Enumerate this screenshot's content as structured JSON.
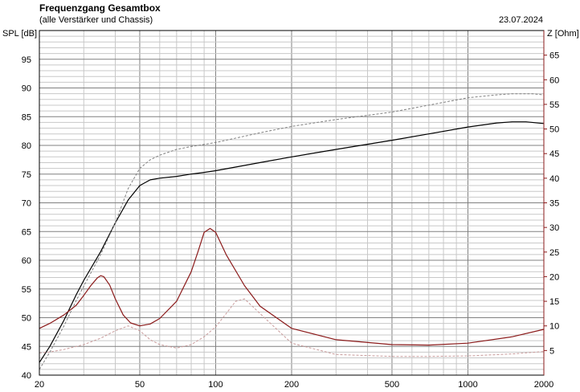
{
  "chart_data": {
    "type": "line",
    "title": "Frequenzgang Gesamtbox",
    "subtitle": "(alle Verstärker und Chassis)",
    "date": "23.07.2024",
    "ylabel": "SPL [dB]",
    "y2label": "Z [Ohm]",
    "x_scale": "log",
    "xlim": [
      20,
      2000
    ],
    "ylim": [
      40,
      100
    ],
    "y2lim": [
      0,
      70
    ],
    "x_ticks": [
      "20",
      "50",
      "100",
      "200",
      "500",
      "1000",
      "2000"
    ],
    "y_ticks": [
      "40",
      "45",
      "50",
      "55",
      "60",
      "65",
      "70",
      "75",
      "80",
      "85",
      "90",
      "95"
    ],
    "y2_ticks": [
      "5",
      "10",
      "15",
      "20",
      "25",
      "30",
      "35",
      "40",
      "45",
      "50",
      "55",
      "60",
      "65"
    ],
    "grid": true,
    "colors": {
      "spl": "#000000",
      "spl_dashed": "#808080",
      "impedance": "#8b1a1a",
      "impedance_dashed": "#c89a9a",
      "grid_major": "#808080",
      "grid_minor": "#c8c8c8"
    },
    "series": [
      {
        "style": "solid",
        "color": "#000000",
        "axis": "left",
        "x": [
          20,
          22,
          25,
          28,
          30,
          35,
          40,
          45,
          50,
          55,
          60,
          70,
          80,
          90,
          100,
          150,
          200,
          300,
          500,
          700,
          1000,
          1300,
          1500,
          1700,
          2000
        ],
        "y": [
          42.2,
          45,
          49.5,
          54,
          56.5,
          61.5,
          66.5,
          70.5,
          73,
          74,
          74.3,
          74.6,
          75,
          75.3,
          75.6,
          77,
          78,
          79.3,
          80.9,
          82,
          83.2,
          83.9,
          84.1,
          84.1,
          83.8
        ]
      },
      {
        "style": "dashed",
        "color": "#808080",
        "axis": "left",
        "x": [
          20,
          22,
          25,
          28,
          30,
          35,
          40,
          45,
          50,
          55,
          60,
          70,
          80,
          100,
          150,
          200,
          300,
          500,
          700,
          1000,
          1300,
          1500,
          1800,
          2000
        ],
        "y": [
          41,
          44,
          48.5,
          53,
          55.5,
          61,
          66.5,
          72.5,
          76,
          77.5,
          78.3,
          79.3,
          79.8,
          80.5,
          82.2,
          83.3,
          84.5,
          85.8,
          87,
          88.3,
          88.8,
          89,
          89,
          88.8
        ]
      },
      {
        "style": "solid",
        "color": "#8b1a1a",
        "axis": "right",
        "x": [
          20,
          22,
          25,
          28,
          30,
          32,
          34,
          35,
          36,
          38,
          40,
          43,
          46,
          50,
          55,
          60,
          70,
          80,
          85,
          90,
          95,
          100,
          110,
          130,
          150,
          200,
          300,
          500,
          700,
          1000,
          1500,
          2000
        ],
        "y": [
          9.5,
          10.5,
          12.2,
          14.2,
          16.2,
          18.2,
          19.8,
          20.2,
          20,
          18.3,
          15.5,
          12.2,
          10.6,
          10,
          10.4,
          11.5,
          15,
          21,
          25,
          29,
          29.8,
          29,
          24.5,
          18.2,
          14,
          9.5,
          7.2,
          6.2,
          6.1,
          6.5,
          7.8,
          9.3
        ]
      },
      {
        "style": "dashed",
        "color": "#c89a9a",
        "axis": "right",
        "x": [
          20,
          22,
          25,
          30,
          35,
          40,
          45,
          50,
          55,
          60,
          70,
          80,
          90,
          100,
          110,
          120,
          130,
          150,
          200,
          300,
          500,
          700,
          1000,
          1500,
          2000
        ],
        "y": [
          4.5,
          4.7,
          5.2,
          6.2,
          7.5,
          9,
          10,
          9,
          7.2,
          6.2,
          5.5,
          6.2,
          7.8,
          9.8,
          12.5,
          15,
          15.5,
          12.5,
          6.5,
          4.2,
          3.8,
          3.8,
          3.9,
          4.3,
          4.8
        ]
      }
    ]
  }
}
